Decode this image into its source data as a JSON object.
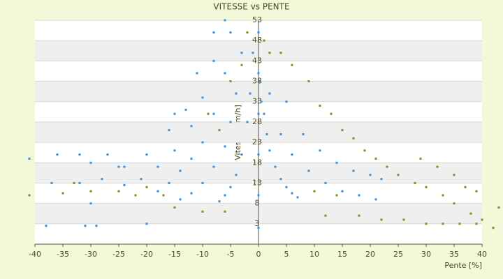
{
  "chart_data": {
    "type": "scatter",
    "title": "VITESSE vs PENTE",
    "x_label": "Pente [%]",
    "y_label": "Vitesse [km/h]",
    "xlim": [
      -40,
      40
    ],
    "xticks": [
      -40,
      -35,
      -30,
      -25,
      -20,
      -15,
      -10,
      -5,
      0,
      5,
      10,
      15,
      20,
      25,
      30,
      35,
      40
    ],
    "ylim": [
      -2,
      53
    ],
    "yticks": [
      3,
      8,
      13,
      18,
      23,
      28,
      33,
      38,
      43,
      48,
      53
    ],
    "grid": true,
    "series": [
      {
        "color": "#3b8fd6",
        "x": [
          -1,
          -1.5,
          -2,
          -3,
          -4,
          -5,
          -6,
          -7,
          -3,
          -4,
          -5,
          -6,
          -8,
          -10,
          -12,
          -14,
          -5,
          -6,
          -8,
          -10,
          -12,
          -14,
          -16,
          -18,
          -6,
          -8,
          -10,
          -12,
          -15,
          -18,
          -21,
          -24,
          -8,
          -11,
          -13,
          -16,
          -20,
          -24,
          -28,
          -32,
          -41,
          -37,
          -36,
          -32,
          -30,
          -30,
          -27,
          -25,
          -15,
          -20,
          -31,
          -29,
          -38,
          0,
          0,
          0,
          0,
          0,
          0,
          0.3,
          0.5,
          1,
          1.5,
          2,
          3,
          4,
          5,
          6,
          7,
          2,
          4,
          6,
          9,
          12,
          15,
          18,
          21,
          5,
          8,
          11,
          14,
          17,
          20,
          22
        ],
        "values": [
          45,
          35,
          28,
          20,
          15,
          12,
          10,
          8.5,
          45,
          35,
          28,
          22,
          17,
          13,
          10.5,
          9,
          50,
          40,
          30,
          23,
          19,
          16,
          13,
          11,
          53,
          43,
          34,
          27,
          21,
          17,
          14,
          12.5,
          50,
          40,
          31,
          26,
          20,
          17,
          14,
          13,
          19,
          13,
          20,
          20,
          8,
          18,
          20,
          17,
          30,
          3,
          2.5,
          2.5,
          2.5,
          2,
          10,
          20,
          30,
          40,
          50,
          38,
          33,
          30,
          25,
          21,
          17,
          14,
          12,
          10.5,
          9.5,
          35,
          25,
          20,
          16,
          13,
          11,
          10,
          9,
          33,
          25,
          21,
          18,
          16,
          15,
          14
        ]
      },
      {
        "color": "#8a8a1a",
        "x": [
          1,
          2,
          4,
          6,
          9,
          11,
          13,
          15,
          17,
          19,
          21,
          23,
          25,
          28,
          30,
          33,
          35,
          38,
          40,
          42,
          43,
          -41,
          -35,
          -33,
          -30,
          -25,
          -22,
          -20,
          -17,
          -15,
          -10,
          -6,
          -3,
          -2,
          10,
          14,
          18,
          22,
          26,
          30,
          33,
          36,
          39,
          29,
          32,
          35,
          37,
          39,
          12,
          -5,
          -9,
          -7
        ],
        "values": [
          48,
          45,
          45,
          42,
          38,
          32,
          30,
          26,
          24,
          21,
          19,
          17,
          15,
          13,
          12,
          10,
          8,
          5.5,
          4,
          2,
          7,
          10,
          10.5,
          13,
          11,
          11,
          10,
          12,
          10,
          7,
          6,
          6,
          42,
          50,
          11,
          10,
          5,
          4,
          4,
          3,
          3,
          3,
          3,
          19,
          17,
          15,
          12,
          11,
          5,
          38,
          30,
          26
        ]
      }
    ]
  }
}
